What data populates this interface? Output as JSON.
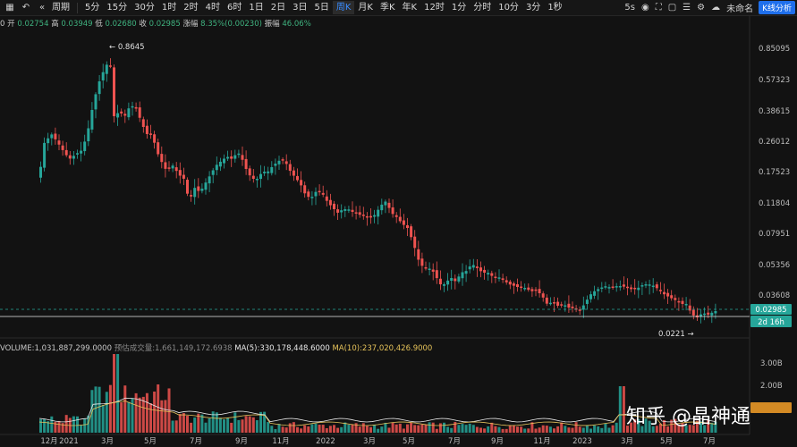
{
  "toolbar": {
    "intervals": [
      "5分",
      "15分",
      "30分",
      "1时",
      "2时",
      "4时",
      "6时",
      "1日",
      "2日",
      "3日",
      "5日",
      "周K",
      "月K",
      "季K",
      "年K",
      "12时",
      "1分",
      "分时",
      "10分",
      "3分",
      "1秒"
    ],
    "period_label": "周期",
    "active_interval": "周K",
    "speed": "5s",
    "layout_name": "未命名",
    "analysis_button": "K线分析"
  },
  "ohlc": {
    "index": "0",
    "open_label": "开",
    "open": "0.02754",
    "high_label": "高",
    "high": "0.03949",
    "low_label": "低",
    "low": "0.02680",
    "close_label": "收",
    "close": "0.02985",
    "change_label": "涨幅",
    "change": "8.35%(0.00230)",
    "amp_label": "振幅",
    "amp": "46.06%"
  },
  "volume_legend": {
    "volume": "VOLUME:1,031,887,299.0000",
    "forecast": "预估成交量:1,661,149,172.6938",
    "ma5": "MA(5):330,178,448.6000",
    "ma10": "MA(10):237,020,426.9000"
  },
  "price_axis": [
    "0.85095",
    "0.57323",
    "0.38615",
    "0.26012",
    "0.17523",
    "0.11804",
    "0.07951",
    "0.05356",
    "0.03608"
  ],
  "volume_axis": [
    "3.00B",
    "2.00B"
  ],
  "current_price": "0.02985",
  "countdown": "2d 16h",
  "high_marker": "0.8645",
  "low_marker": "0.0221",
  "time_axis": [
    "12月",
    "2021",
    "3月",
    "5月",
    "7月",
    "9月",
    "11月",
    "2022",
    "3月",
    "5月",
    "7月",
    "9月",
    "11月",
    "2023",
    "3月",
    "5月",
    "7月"
  ],
  "watermark": "知乎 @晶神通",
  "colors": {
    "up": "#26a69a",
    "down": "#ef5350",
    "accent": "#1f6feb",
    "bg": "#121212"
  }
}
